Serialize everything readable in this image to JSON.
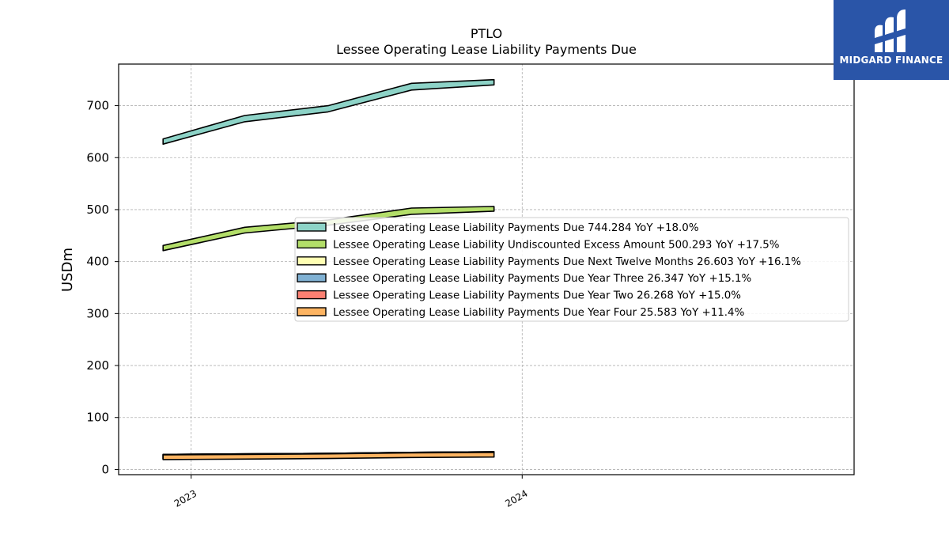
{
  "chart_data": {
    "type": "area",
    "title": "PTLO",
    "subtitle": "Lessee Operating Lease Liability Payments Due",
    "ylabel": "USDm",
    "xlabel": "",
    "ylim": [
      -10,
      780
    ],
    "xlim": [
      "2022-10-13",
      "2025-01-01"
    ],
    "x": [
      "2022-12-01",
      "2023-03-01",
      "2023-06-01",
      "2023-09-01",
      "2023-12-01"
    ],
    "x_ticks": [
      {
        "value": "2023-01-01",
        "label": "2023"
      },
      {
        "value": "2024-01-01",
        "label": "2024"
      }
    ],
    "y_ticks": [
      0,
      100,
      200,
      300,
      400,
      500,
      600,
      700
    ],
    "grid": true,
    "legend_position": "center-right",
    "series": [
      {
        "name": "Lessee Operating Lease Liability Payments Due  744.284 YoY +18.0%",
        "color": "#8dd3c7",
        "lower": [
          626,
          669,
          688,
          730,
          740
        ],
        "upper": [
          636,
          681,
          700,
          743,
          750
        ]
      },
      {
        "name": "Lessee Operating Lease Liability Undiscounted Excess Amount  500.293 YoY +17.5%",
        "color": "#b3de69",
        "lower": [
          421,
          455,
          470,
          491,
          497
        ],
        "upper": [
          431,
          466,
          480,
          503,
          506
        ]
      },
      {
        "name": "Lessee Operating Lease Liability Payments Due Next Twelve Months  26.603 YoY +16.1%",
        "color": "#ffffb3",
        "lower": [
          20,
          21,
          22,
          24,
          25
        ],
        "upper": [
          29,
          30,
          31,
          33,
          34
        ]
      },
      {
        "name": "Lessee Operating Lease Liability Payments Due Year Three  26.347 YoY +15.1%",
        "color": "#80b1d3",
        "lower": [
          20,
          21,
          22,
          24,
          25
        ],
        "upper": [
          29,
          30,
          31,
          33,
          34
        ]
      },
      {
        "name": "Lessee Operating Lease Liability Payments Due Year Two  26.268 YoY +15.0%",
        "color": "#fb8072",
        "lower": [
          20,
          21,
          22,
          24,
          25
        ],
        "upper": [
          29,
          30,
          31,
          33,
          34
        ]
      },
      {
        "name": "Lessee Operating Lease Liability Payments Due Year Four  25.583 YoY +11.4%",
        "color": "#fdb462",
        "lower": [
          19,
          20,
          21,
          23,
          24
        ],
        "upper": [
          28,
          29,
          30,
          32,
          33
        ]
      }
    ]
  },
  "logo": {
    "text": "MIDGARD FINANCE",
    "background": "#2a55a8"
  }
}
